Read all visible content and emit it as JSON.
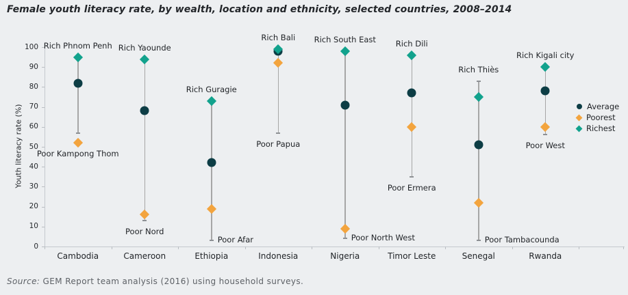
{
  "title": "Female youth literacy rate, by wealth, location and ethnicity, selected countries, 2008–2014",
  "source": {
    "prefix": "Source:",
    "text": " GEM Report team analysis (2016) using household surveys."
  },
  "legend": {
    "items": [
      "Average",
      "Poorest",
      "Richest"
    ]
  },
  "colors": {
    "average": "#0d3d45",
    "poorest": "#f3a43e",
    "richest": "#12a28d",
    "range_line": "#a6a6a6",
    "background": "#edeff1"
  },
  "chart_data": {
    "type": "scatter",
    "title": "Female youth literacy rate, by wealth, location and ethnicity, selected countries, 2008–2014",
    "xlabel": "",
    "ylabel": "Youth literacy rate (%)",
    "ylim": [
      0,
      100
    ],
    "ytick_step": 10,
    "grid": false,
    "legend_position": "right",
    "categories": [
      "Cambodia",
      "Cameroon",
      "Ethiopia",
      "Indonesia",
      "Nigeria",
      "Timor Leste",
      "Senegal",
      "Rwanda"
    ],
    "series": [
      {
        "name": "Average",
        "marker": "circle",
        "values": [
          82,
          68,
          42,
          98,
          71,
          77,
          51,
          78
        ]
      },
      {
        "name": "Poorest",
        "marker": "diamond",
        "values": [
          52,
          16,
          19,
          92,
          9,
          60,
          22,
          60
        ]
      },
      {
        "name": "Richest",
        "marker": "diamond",
        "values": [
          95,
          94,
          73,
          99,
          98,
          96,
          75,
          90
        ]
      }
    ],
    "location_ranges": [
      {
        "category": "Cambodia",
        "rich_label": "Rich Phnom Penh",
        "poor_label": "Poor Kampong Thom",
        "high": 95,
        "low": 57,
        "poor_label_placement": "below"
      },
      {
        "category": "Cameroon",
        "rich_label": "Rich Yaounde",
        "poor_label": "Poor Nord",
        "high": 94,
        "low": 13,
        "poor_label_placement": "below"
      },
      {
        "category": "Ethiopia",
        "rich_label": "Rich Guragie",
        "poor_label": "Poor Afar",
        "high": 73,
        "low": 3,
        "poor_label_placement": "side"
      },
      {
        "category": "Indonesia",
        "rich_label": "Rich Bali",
        "poor_label": "Poor Papua",
        "high": 99,
        "low": 57,
        "poor_label_placement": "below"
      },
      {
        "category": "Nigeria",
        "rich_label": "Rich South East",
        "poor_label": "Poor North West",
        "high": 98,
        "low": 4,
        "poor_label_placement": "side"
      },
      {
        "category": "Timor Leste",
        "rich_label": "Rich Dili",
        "poor_label": "Poor Ermera",
        "high": 96,
        "low": 35,
        "poor_label_placement": "below"
      },
      {
        "category": "Senegal",
        "rich_label": "Rich Thiès",
        "poor_label": "Poor Tambacounda",
        "high": 83,
        "low": 3,
        "poor_label_placement": "side"
      },
      {
        "category": "Rwanda",
        "rich_label": "Rich Kigali city",
        "poor_label": "Poor West",
        "high": 90,
        "low": 56,
        "poor_label_placement": "below"
      }
    ]
  }
}
